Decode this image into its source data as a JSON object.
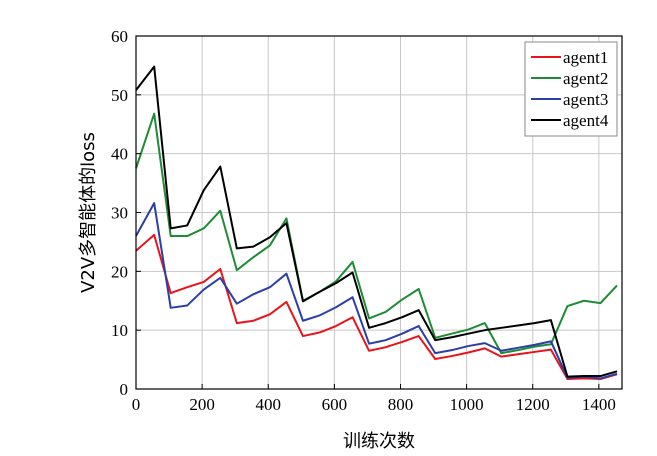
{
  "chart_data": {
    "type": "line",
    "xlabel": "训练次数",
    "ylabel": "V2V多智能体的loss",
    "xlim": [
      0,
      1470
    ],
    "ylim": [
      0,
      60
    ],
    "xticks": [
      "0",
      "200",
      "400",
      "600",
      "800",
      "1000",
      "1200",
      "1400"
    ],
    "yticks": [
      "0",
      "10",
      "20",
      "30",
      "40",
      "50",
      "60"
    ],
    "grid": true,
    "legend_position": "top-right",
    "x": [
      0,
      55,
      105,
      155,
      205,
      255,
      305,
      355,
      405,
      455,
      505,
      555,
      605,
      655,
      705,
      755,
      805,
      855,
      905,
      955,
      1005,
      1055,
      1105,
      1155,
      1205,
      1255,
      1305,
      1355,
      1405,
      1455
    ],
    "series": [
      {
        "name": "agent1",
        "color": "#e8141a",
        "values": [
          23.5,
          26.2,
          16.3,
          17.3,
          18.2,
          20.4,
          11.2,
          11.6,
          12.7,
          14.8,
          9.0,
          9.6,
          10.7,
          12.2,
          6.5,
          7.1,
          8.0,
          9.0,
          5.1,
          5.6,
          6.2,
          6.9,
          5.5,
          5.9,
          6.3,
          6.7,
          1.7,
          1.8,
          1.7,
          2.5
        ]
      },
      {
        "name": "agent2",
        "color": "#1e8c35",
        "values": [
          37.5,
          46.8,
          26.0,
          26.0,
          27.3,
          30.3,
          20.2,
          22.4,
          24.4,
          29.0,
          15.0,
          16.5,
          18.3,
          21.6,
          12.0,
          13.1,
          15.2,
          17.0,
          8.7,
          9.4,
          10.1,
          11.2,
          6.1,
          6.6,
          7.2,
          7.6,
          14.1,
          15.0,
          14.6,
          17.6
        ]
      },
      {
        "name": "agent3",
        "color": "#2b3fa8",
        "values": [
          26.0,
          31.6,
          13.8,
          14.2,
          16.9,
          18.9,
          14.5,
          16.1,
          17.3,
          19.6,
          11.6,
          12.5,
          13.9,
          15.6,
          7.7,
          8.3,
          9.4,
          10.7,
          6.1,
          6.6,
          7.3,
          7.8,
          6.5,
          7.0,
          7.5,
          8.1,
          1.9,
          2.1,
          1.8,
          2.6
        ]
      },
      {
        "name": "agent4",
        "color": "#000000",
        "values": [
          50.8,
          54.8,
          27.3,
          27.8,
          33.8,
          37.8,
          23.9,
          24.2,
          25.8,
          28.2,
          14.9,
          16.5,
          18.0,
          19.8,
          10.4,
          11.2,
          12.2,
          13.4,
          8.3,
          8.8,
          9.4,
          10.0,
          10.4,
          10.8,
          11.2,
          11.7,
          2.1,
          2.2,
          2.2,
          3.0
        ]
      }
    ]
  }
}
